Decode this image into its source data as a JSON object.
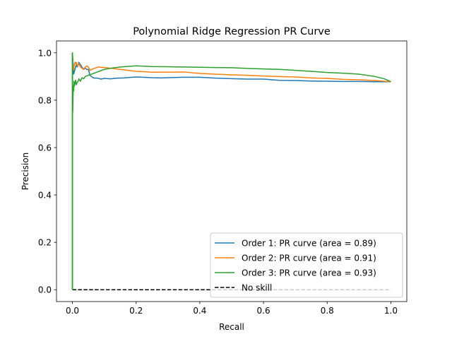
{
  "chart_data": {
    "type": "line",
    "title": "Polynomial Ridge Regression PR Curve",
    "xlabel": "Recall",
    "ylabel": "Precision",
    "xlim": [
      -0.05,
      1.05
    ],
    "ylim": [
      -0.05,
      1.05
    ],
    "xticks": [
      0.0,
      0.2,
      0.4,
      0.6,
      0.8,
      1.0
    ],
    "yticks": [
      0.0,
      0.2,
      0.4,
      0.6,
      0.8,
      1.0
    ],
    "xtick_labels": [
      "0.0",
      "0.2",
      "0.4",
      "0.6",
      "0.8",
      "1.0"
    ],
    "ytick_labels": [
      "0.0",
      "0.2",
      "0.4",
      "0.6",
      "0.8",
      "1.0"
    ],
    "grid": false,
    "legend_position": "lower-right",
    "series": [
      {
        "name": "Order 1: PR curve (area = 0.89)",
        "color": "#1f77b4",
        "style": "solid",
        "x": [
          0.0,
          0.0,
          0.001,
          0.002,
          0.003,
          0.004,
          0.006,
          0.008,
          0.01,
          0.012,
          0.015,
          0.018,
          0.02,
          0.025,
          0.03,
          0.035,
          0.04,
          0.045,
          0.05,
          0.055,
          0.06,
          0.065,
          0.07,
          0.08,
          0.09,
          0.1,
          0.12,
          0.14,
          0.16,
          0.18,
          0.2,
          0.22,
          0.25,
          0.28,
          0.3,
          0.35,
          0.4,
          0.45,
          0.5,
          0.55,
          0.6,
          0.65,
          0.7,
          0.75,
          0.8,
          0.85,
          0.9,
          0.95,
          1.0
        ],
        "y": [
          0.0,
          1.0,
          0.98,
          0.96,
          0.93,
          0.91,
          0.92,
          0.93,
          0.94,
          0.95,
          0.94,
          0.95,
          0.96,
          0.95,
          0.94,
          0.93,
          0.935,
          0.93,
          0.93,
          0.905,
          0.9,
          0.895,
          0.893,
          0.893,
          0.889,
          0.892,
          0.89,
          0.893,
          0.894,
          0.896,
          0.898,
          0.897,
          0.895,
          0.894,
          0.895,
          0.897,
          0.897,
          0.893,
          0.891,
          0.889,
          0.889,
          0.884,
          0.883,
          0.881,
          0.88,
          0.879,
          0.879,
          0.878,
          0.878
        ]
      },
      {
        "name": "Order 2: PR curve (area = 0.91)",
        "color": "#ff7f0e",
        "style": "solid",
        "x": [
          0.0,
          0.0,
          0.002,
          0.004,
          0.006,
          0.008,
          0.01,
          0.012,
          0.015,
          0.018,
          0.02,
          0.025,
          0.03,
          0.035,
          0.04,
          0.045,
          0.05,
          0.055,
          0.06,
          0.07,
          0.08,
          0.1,
          0.12,
          0.15,
          0.18,
          0.2,
          0.25,
          0.3,
          0.35,
          0.4,
          0.45,
          0.5,
          0.55,
          0.6,
          0.65,
          0.7,
          0.75,
          0.8,
          0.85,
          0.9,
          0.95,
          1.0
        ],
        "y": [
          0.0,
          1.0,
          0.95,
          0.93,
          0.95,
          0.96,
          0.955,
          0.96,
          0.945,
          0.95,
          0.955,
          0.94,
          0.935,
          0.93,
          0.94,
          0.945,
          0.94,
          0.925,
          0.93,
          0.935,
          0.94,
          0.938,
          0.935,
          0.93,
          0.925,
          0.922,
          0.918,
          0.918,
          0.919,
          0.913,
          0.91,
          0.907,
          0.905,
          0.902,
          0.9,
          0.898,
          0.894,
          0.892,
          0.888,
          0.886,
          0.883,
          0.878
        ]
      },
      {
        "name": "Order 3: PR curve (area = 0.93)",
        "color": "#2ca02c",
        "style": "solid",
        "x": [
          0.0,
          0.0,
          0.001,
          0.002,
          0.003,
          0.004,
          0.005,
          0.006,
          0.008,
          0.01,
          0.012,
          0.015,
          0.018,
          0.02,
          0.025,
          0.03,
          0.035,
          0.04,
          0.05,
          0.06,
          0.08,
          0.1,
          0.12,
          0.15,
          0.18,
          0.2,
          0.25,
          0.3,
          0.35,
          0.4,
          0.45,
          0.5,
          0.55,
          0.6,
          0.65,
          0.7,
          0.75,
          0.8,
          0.85,
          0.9,
          0.95,
          0.98,
          1.0
        ],
        "y": [
          0.0,
          1.0,
          0.75,
          0.82,
          0.86,
          0.84,
          0.88,
          0.86,
          0.87,
          0.885,
          0.865,
          0.875,
          0.88,
          0.89,
          0.88,
          0.895,
          0.89,
          0.9,
          0.905,
          0.91,
          0.92,
          0.93,
          0.935,
          0.94,
          0.943,
          0.945,
          0.942,
          0.941,
          0.94,
          0.939,
          0.938,
          0.937,
          0.934,
          0.932,
          0.93,
          0.926,
          0.922,
          0.917,
          0.914,
          0.91,
          0.9,
          0.89,
          0.878
        ]
      },
      {
        "name": "No skill",
        "color": "#000000",
        "style": "dashed",
        "x": [
          0.0,
          1.0
        ],
        "y": [
          0.0,
          0.0
        ]
      }
    ]
  }
}
